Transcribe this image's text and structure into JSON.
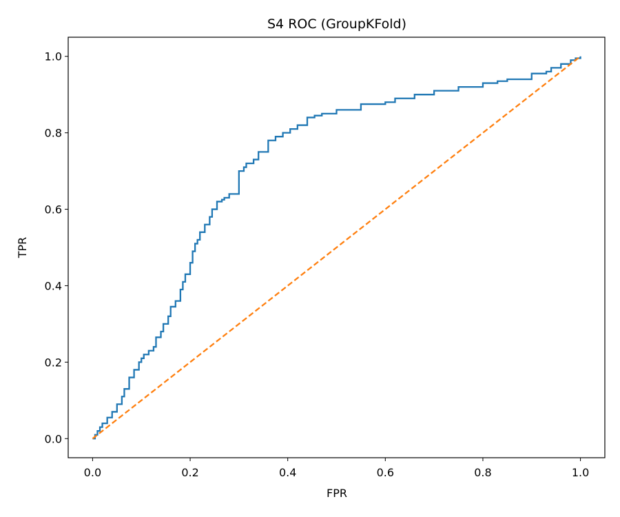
{
  "chart_data": {
    "type": "line",
    "title": "S4 ROC (GroupKFold)",
    "xlabel": "FPR",
    "ylabel": "TPR",
    "xlim": [
      -0.05,
      1.05
    ],
    "ylim": [
      -0.05,
      1.05
    ],
    "xticks": [
      0.0,
      0.2,
      0.4,
      0.6,
      0.8,
      1.0
    ],
    "yticks": [
      0.0,
      0.2,
      0.4,
      0.6,
      0.8,
      1.0
    ],
    "xtick_labels": [
      "0.0",
      "0.2",
      "0.4",
      "0.6",
      "0.8",
      "1.0"
    ],
    "ytick_labels": [
      "0.0",
      "0.2",
      "0.4",
      "0.6",
      "0.8",
      "1.0"
    ],
    "grid": false,
    "legend": "none",
    "series": [
      {
        "color": "#1f77b4",
        "style": "solid-step",
        "x": [
          0.0,
          0.005,
          0.01,
          0.015,
          0.02,
          0.03,
          0.04,
          0.05,
          0.06,
          0.065,
          0.075,
          0.085,
          0.095,
          0.1,
          0.105,
          0.115,
          0.125,
          0.13,
          0.14,
          0.145,
          0.155,
          0.16,
          0.17,
          0.18,
          0.185,
          0.19,
          0.2,
          0.205,
          0.21,
          0.215,
          0.22,
          0.23,
          0.24,
          0.245,
          0.255,
          0.265,
          0.27,
          0.28,
          0.3,
          0.31,
          0.315,
          0.33,
          0.34,
          0.36,
          0.37,
          0.375,
          0.39,
          0.405,
          0.42,
          0.44,
          0.455,
          0.47,
          0.5,
          0.55,
          0.6,
          0.62,
          0.66,
          0.7,
          0.75,
          0.8,
          0.83,
          0.85,
          0.9,
          0.93,
          0.94,
          0.96,
          0.98,
          0.99,
          1.0
        ],
        "y": [
          0.0,
          0.01,
          0.02,
          0.03,
          0.04,
          0.055,
          0.07,
          0.09,
          0.11,
          0.13,
          0.16,
          0.18,
          0.2,
          0.21,
          0.22,
          0.23,
          0.24,
          0.265,
          0.28,
          0.3,
          0.32,
          0.345,
          0.36,
          0.39,
          0.41,
          0.43,
          0.46,
          0.49,
          0.51,
          0.52,
          0.54,
          0.56,
          0.58,
          0.6,
          0.62,
          0.625,
          0.63,
          0.64,
          0.7,
          0.71,
          0.72,
          0.73,
          0.75,
          0.78,
          0.78,
          0.79,
          0.8,
          0.81,
          0.82,
          0.84,
          0.845,
          0.85,
          0.86,
          0.875,
          0.88,
          0.89,
          0.9,
          0.91,
          0.92,
          0.93,
          0.935,
          0.94,
          0.955,
          0.96,
          0.97,
          0.98,
          0.99,
          0.995,
          1.0
        ]
      },
      {
        "color": "#ff7f0e",
        "style": "dashed",
        "x": [
          0.0,
          1.0
        ],
        "y": [
          0.0,
          1.0
        ]
      }
    ]
  }
}
